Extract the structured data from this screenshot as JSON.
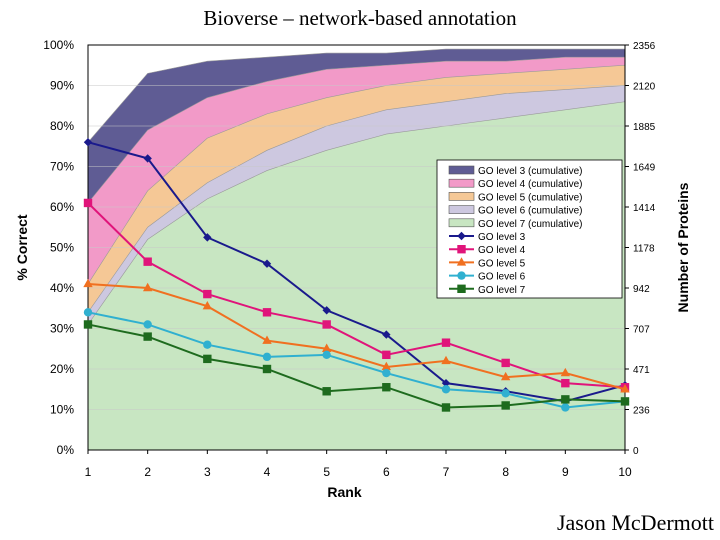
{
  "slide": {
    "title": "Bioverse – network-based annotation",
    "author": "Jason McDermott"
  },
  "chart_data": {
    "type": "area",
    "x": [
      1,
      2,
      3,
      4,
      5,
      6,
      7,
      8,
      9,
      10
    ],
    "xlabel": "Rank",
    "ylabel": "% Correct",
    "y2label": "Number of Proteins",
    "ylim": [
      0,
      100
    ],
    "y2lim": [
      0,
      2356
    ],
    "yticks": [
      "0%",
      "10%",
      "20%",
      "30%",
      "40%",
      "50%",
      "60%",
      "70%",
      "80%",
      "90%",
      "100%"
    ],
    "y2ticks": [
      "0",
      "236",
      "471",
      "707",
      "942",
      "1178",
      "1414",
      "1649",
      "1885",
      "2120",
      "2356"
    ],
    "area_series": [
      {
        "name": "GO level 7 (cumulative)",
        "color": "#c8e6c2",
        "values": [
          31,
          52,
          62,
          69,
          74,
          78,
          80,
          82,
          84,
          86
        ]
      },
      {
        "name": "GO level 6 (cumulative)",
        "color": "#cdc8e0",
        "values": [
          34,
          55,
          66,
          74,
          80,
          84,
          86,
          88,
          89,
          90
        ]
      },
      {
        "name": "GO level 5 (cumulative)",
        "color": "#f5c896",
        "values": [
          41,
          64,
          77,
          83,
          87,
          90,
          92,
          93,
          94,
          95
        ]
      },
      {
        "name": "GO level 4 (cumulative)",
        "color": "#f29ac8",
        "values": [
          61,
          79,
          87,
          91,
          94,
          95,
          96,
          96,
          97,
          97
        ]
      },
      {
        "name": "GO level 3 (cumulative)",
        "color": "#5f5c94",
        "values": [
          76,
          93,
          96,
          97,
          98,
          98,
          99,
          99,
          99,
          99
        ]
      }
    ],
    "line_series": [
      {
        "name": "GO level 3",
        "color": "#1a1a8c",
        "marker": "diamond",
        "values": [
          76,
          72,
          52.5,
          46,
          34.5,
          28.5,
          16.5,
          14.5,
          12,
          16
        ]
      },
      {
        "name": "GO level 4",
        "color": "#e0147a",
        "marker": "square",
        "values": [
          61,
          46.5,
          38.5,
          34,
          31,
          23.5,
          26.5,
          21.5,
          16.5,
          15.5
        ]
      },
      {
        "name": "GO level 5",
        "color": "#f07020",
        "marker": "triangle",
        "values": [
          41,
          40,
          35.5,
          27,
          25,
          20.5,
          22,
          18,
          19,
          15
        ]
      },
      {
        "name": "GO level 6",
        "color": "#30b0d0",
        "marker": "circle",
        "values": [
          34,
          31,
          26,
          23,
          23.5,
          19,
          15,
          14,
          10.5,
          12
        ]
      },
      {
        "name": "GO level 7",
        "color": "#1e6b1e",
        "marker": "square",
        "values": [
          31,
          28,
          22.5,
          20,
          14.5,
          15.5,
          10.5,
          11,
          12.5,
          12
        ]
      }
    ],
    "legend_position": "right"
  }
}
